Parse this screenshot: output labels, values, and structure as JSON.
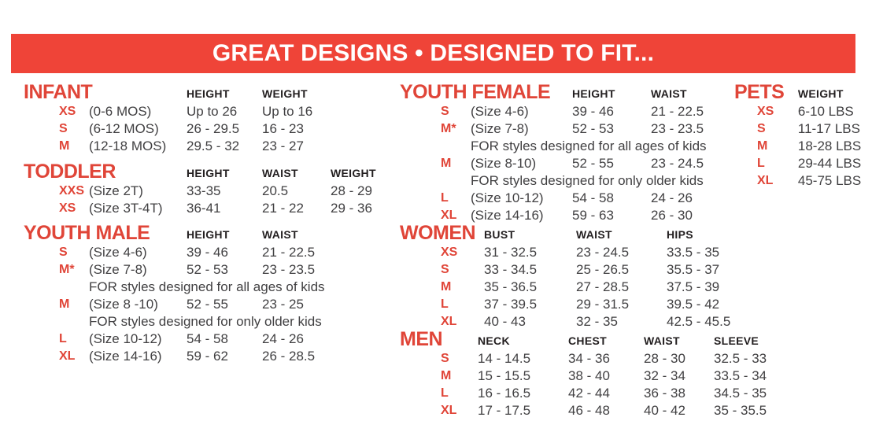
{
  "banner": {
    "title": "GREAT DESIGNS • DESIGNED TO FIT...",
    "bg": "#EF4438",
    "fg": "#FFFFFF"
  },
  "colors": {
    "accent": "#E04538",
    "heading": "#231F20",
    "body": "#414042"
  },
  "sections": {
    "infant": {
      "title": "INFANT",
      "columns": [
        "HEIGHT",
        "WEIGHT"
      ],
      "rows": [
        {
          "size": "XS",
          "desc": "(0-6 MOS)",
          "values": [
            "Up to 26",
            "Up to 16"
          ]
        },
        {
          "size": "S",
          "desc": "(6-12 MOS)",
          "values": [
            "26 - 29.5",
            "16 - 23"
          ]
        },
        {
          "size": "M",
          "desc": "(12-18 MOS)",
          "values": [
            "29.5 - 32",
            "23 - 27"
          ]
        }
      ]
    },
    "toddler": {
      "title": "TODDLER",
      "columns": [
        "HEIGHT",
        "WAIST",
        "WEIGHT"
      ],
      "rows": [
        {
          "size": "XXS",
          "desc": "(Size 2T)",
          "values": [
            "33-35",
            "20.5",
            "28 - 29"
          ]
        },
        {
          "size": "XS",
          "desc": "(Size 3T-4T)",
          "values": [
            "36-41",
            "21 - 22",
            "29 - 36"
          ]
        }
      ]
    },
    "youth_male": {
      "title": "YOUTH MALE",
      "columns": [
        "HEIGHT",
        "WAIST"
      ],
      "rows": [
        {
          "size": "S",
          "desc": "(Size 4-6)",
          "values": [
            "39 - 46",
            "21 - 22.5"
          ]
        },
        {
          "size": "M*",
          "desc": "(Size 7-8)",
          "values": [
            "52 - 53",
            "23 - 23.5"
          ]
        },
        {
          "note": "FOR styles designed for all ages of kids"
        },
        {
          "size": "M",
          "desc": "(Size 8 -10)",
          "values": [
            "52 - 55",
            "23 - 25"
          ]
        },
        {
          "note": "FOR styles designed for only older kids"
        },
        {
          "size": "L",
          "desc": "(Size 10-12)",
          "values": [
            "54 - 58",
            "24 - 26"
          ]
        },
        {
          "size": "XL",
          "desc": "(Size 14-16)",
          "values": [
            "59 - 62",
            "26 - 28.5"
          ]
        }
      ]
    },
    "youth_female": {
      "title": "YOUTH FEMALE",
      "columns": [
        "HEIGHT",
        "WAIST"
      ],
      "rows": [
        {
          "size": "S",
          "desc": "(Size 4-6)",
          "values": [
            "39 - 46",
            "21 - 22.5"
          ]
        },
        {
          "size": "M*",
          "desc": "(Size 7-8)",
          "values": [
            "52 - 53",
            "23 - 23.5"
          ]
        },
        {
          "note": "FOR styles designed for all ages of kids"
        },
        {
          "size": "M",
          "desc": "(Size 8-10)",
          "values": [
            "52 - 55",
            "23 - 24.5"
          ]
        },
        {
          "note": "FOR styles designed for only older kids"
        },
        {
          "size": "L",
          "desc": "(Size 10-12)",
          "values": [
            "54 - 58",
            "24 - 26"
          ]
        },
        {
          "size": "XL",
          "desc": "(Size 14-16)",
          "values": [
            "59 - 63",
            "26 - 30"
          ]
        }
      ]
    },
    "women": {
      "title": "WOMEN",
      "columns": [
        "BUST",
        "WAIST",
        "HIPS"
      ],
      "rows": [
        {
          "size": "XS",
          "values": [
            "31 - 32.5",
            "23 - 24.5",
            "33.5 - 35"
          ]
        },
        {
          "size": "S",
          "values": [
            "33 - 34.5",
            "25 - 26.5",
            "35.5 - 37"
          ]
        },
        {
          "size": "M",
          "values": [
            "35 - 36.5",
            "27 - 28.5",
            "37.5 - 39"
          ]
        },
        {
          "size": "L",
          "values": [
            "37 - 39.5",
            "29 - 31.5",
            "39.5 - 42"
          ]
        },
        {
          "size": "XL",
          "values": [
            "40 - 43",
            "32 - 35",
            "42.5 - 45.5"
          ]
        }
      ]
    },
    "men": {
      "title": "MEN",
      "columns": [
        "NECK",
        "CHEST",
        "WAIST",
        "SLEEVE"
      ],
      "rows": [
        {
          "size": "S",
          "values": [
            "14 - 14.5",
            "34 - 36",
            "28 - 30",
            "32.5 - 33"
          ]
        },
        {
          "size": "M",
          "values": [
            "15 - 15.5",
            "38 - 40",
            "32 - 34",
            "33.5 - 34"
          ]
        },
        {
          "size": "L",
          "values": [
            "16 - 16.5",
            "42 - 44",
            "36 - 38",
            "34.5 - 35"
          ]
        },
        {
          "size": "XL",
          "values": [
            "17 - 17.5",
            "46 - 48",
            "40 - 42",
            "35 - 35.5"
          ]
        }
      ]
    },
    "pets": {
      "title": "PETS",
      "columns": [
        "WEIGHT"
      ],
      "rows": [
        {
          "size": "XS",
          "values": [
            "6-10 LBS"
          ]
        },
        {
          "size": "S",
          "values": [
            "11-17 LBS"
          ]
        },
        {
          "size": "M",
          "values": [
            "18-28 LBS"
          ]
        },
        {
          "size": "L",
          "values": [
            "29-44 LBS"
          ]
        },
        {
          "size": "XL",
          "values": [
            "45-75 LBS"
          ]
        }
      ]
    }
  }
}
